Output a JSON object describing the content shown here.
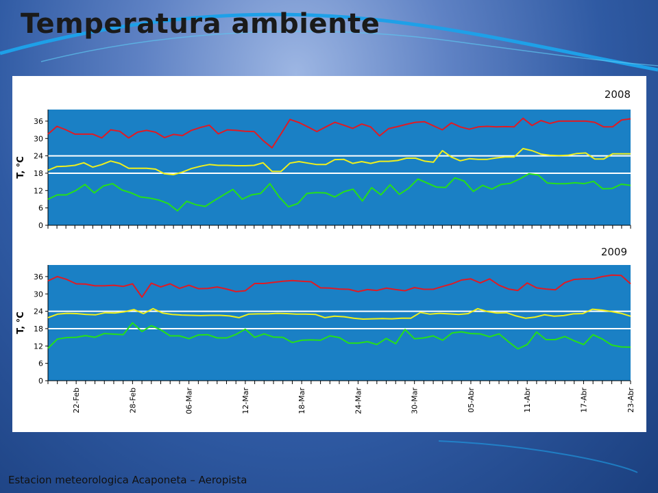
{
  "slide": {
    "title": "Temperatura ambiente",
    "footer": "Estacion meteorologica Acaponeta – Aeropista",
    "background_color": "#2f5aa3"
  },
  "chart_data": [
    {
      "type": "line",
      "year_label": "2008",
      "ylabel": "T, °C",
      "ylim": [
        0,
        40
      ],
      "yticks": [
        0,
        6,
        12,
        18,
        24,
        30,
        36
      ],
      "xlabel": "",
      "plot_background": "#1a80c5",
      "reference_lines": [
        18,
        24
      ],
      "reference_line_color": "#ffffff",
      "series": [
        {
          "color": "#e01a23",
          "values": [
            31.5,
            34.2,
            33,
            31.5,
            31.5,
            31.5,
            30.2,
            33,
            32.5,
            30.2,
            32.2,
            32.8,
            32.2,
            30.3,
            31.4,
            31,
            32.8,
            33.8,
            34.6,
            31.6,
            33,
            32.8,
            32.5,
            32.4,
            29.3,
            26.8,
            31.6,
            36.6,
            35.5,
            34,
            32.4,
            34,
            35.6,
            34.6,
            33.5,
            35,
            34,
            30.9,
            33.4,
            34.1,
            34.9,
            35.6,
            35.8,
            34.4,
            33,
            35.4,
            34,
            33.2,
            34,
            34.2,
            34,
            34.1,
            34,
            37,
            34.5,
            36.2,
            35.2,
            36,
            36,
            36,
            36,
            35.6,
            34,
            34,
            36.4,
            36.8
          ]
        },
        {
          "color": "#f0f01c",
          "values": [
            19,
            20.3,
            20.4,
            20.7,
            21.6,
            20.1,
            21,
            22.2,
            21.4,
            19.7,
            19.7,
            19.7,
            19.4,
            17.8,
            17.5,
            18.4,
            19.6,
            20.4,
            21,
            20.7,
            20.7,
            20.6,
            20.6,
            20.7,
            21.6,
            18.6,
            18.6,
            21.5,
            22,
            21.5,
            21,
            21,
            22.7,
            22.8,
            21.4,
            22,
            21.4,
            22.1,
            22.1,
            22.4,
            23.2,
            23.2,
            22.2,
            21.8,
            25.8,
            23.6,
            22.3,
            23,
            22.8,
            22.8,
            23.3,
            23.6,
            23.6,
            26.5,
            25.8,
            24.6,
            24.2,
            24.1,
            24.2,
            24.8,
            25,
            22.9,
            22.9,
            24.7,
            24.7,
            24.7
          ]
        },
        {
          "color": "#26e018",
          "values": [
            9,
            10.5,
            10.5,
            12,
            14.1,
            11.2,
            13.6,
            14.4,
            12.2,
            11.2,
            9.8,
            9.4,
            8.7,
            7.5,
            5,
            8.3,
            7.1,
            6.5,
            8.6,
            10.5,
            12.4,
            9,
            10.5,
            11,
            14.4,
            9.8,
            6.4,
            7.5,
            11,
            11.3,
            11.2,
            9.8,
            11.6,
            12.5,
            8.4,
            13,
            10.5,
            14,
            10.7,
            12.8,
            16,
            14.6,
            13.2,
            13.1,
            16.4,
            15.3,
            11.7,
            13.8,
            12.5,
            14.1,
            14.5,
            16,
            17.8,
            17.4,
            14.6,
            14.4,
            14.4,
            14.7,
            14.4,
            15.2,
            12.6,
            12.7,
            14.2,
            13.8
          ]
        }
      ]
    },
    {
      "type": "line",
      "year_label": "2009",
      "ylabel": "T, °C",
      "ylim": [
        0,
        40
      ],
      "yticks": [
        0,
        6,
        12,
        18,
        24,
        30,
        36
      ],
      "xlabel": "",
      "plot_background": "#1a80c5",
      "reference_lines": [
        18,
        24
      ],
      "reference_line_color": "#ffffff",
      "x_tick_labels": [
        "22-Feb",
        "28-Feb",
        "06-Mar",
        "12-Mar",
        "18-Mar",
        "24-Mar",
        "30-Mar",
        "05-Abr",
        "11-Abr",
        "17-Abr",
        "23-Abr"
      ],
      "series": [
        {
          "color": "#e01a23",
          "values": [
            34.5,
            36,
            35,
            33.5,
            33.4,
            32.8,
            32.8,
            33,
            32.6,
            33.5,
            28.9,
            33.7,
            32.4,
            33.5,
            31.9,
            33,
            31.8,
            31.9,
            32.4,
            31.7,
            30.8,
            31.1,
            33.6,
            33.6,
            34,
            34.4,
            34.6,
            34.4,
            34.2,
            32.1,
            32,
            31.7,
            31.6,
            30.8,
            31.5,
            31.2,
            32,
            31.5,
            31.1,
            32.2,
            31.6,
            31.6,
            32.6,
            33.5,
            34.8,
            35.2,
            33.8,
            35.2,
            33,
            31.7,
            31.2,
            33.8,
            32.1,
            31.7,
            31.4,
            33.9,
            35,
            35.2,
            35.2,
            36,
            36.5,
            36.4,
            33.5
          ]
        },
        {
          "color": "#f0f01c",
          "values": [
            21.8,
            23,
            23.3,
            23.2,
            22.9,
            22.8,
            23.5,
            23.4,
            23.8,
            24.6,
            23.2,
            24.9,
            23.4,
            22.9,
            22.7,
            22.6,
            22.5,
            22.6,
            22.6,
            22.4,
            21.8,
            23,
            23.1,
            23.1,
            23.3,
            23.2,
            23,
            23,
            22.9,
            21.8,
            22.3,
            22.1,
            21.6,
            21.3,
            21.4,
            21.5,
            21.4,
            21.6,
            21.6,
            23.6,
            23,
            23.3,
            23.1,
            22.9,
            23.2,
            24.9,
            23.9,
            23.4,
            23.5,
            22.4,
            21.6,
            22,
            22.8,
            22.3,
            22.5,
            23.1,
            23.2,
            24.7,
            24.4,
            23.9,
            23.3,
            22.3
          ]
        },
        {
          "color": "#26e018",
          "values": [
            11.2,
            14.4,
            14.9,
            15,
            15.6,
            15,
            16.3,
            16.1,
            15.9,
            20,
            17,
            19,
            17.6,
            15.5,
            15.5,
            14.5,
            15.8,
            15.9,
            14.8,
            14.8,
            16,
            17.8,
            15,
            16.2,
            15.1,
            15,
            13.2,
            14,
            14.1,
            14,
            15.5,
            14.9,
            13,
            13,
            13.5,
            12.5,
            14.6,
            12.8,
            17.7,
            14.5,
            14.8,
            15.5,
            14,
            16.5,
            16.9,
            16.3,
            16.2,
            15.2,
            16.2,
            13.5,
            11,
            12.5,
            16.8,
            14.2,
            14.2,
            15.3,
            13.8,
            12.5,
            15.9,
            14.4,
            12.3,
            11.7,
            11.6
          ]
        }
      ]
    }
  ]
}
